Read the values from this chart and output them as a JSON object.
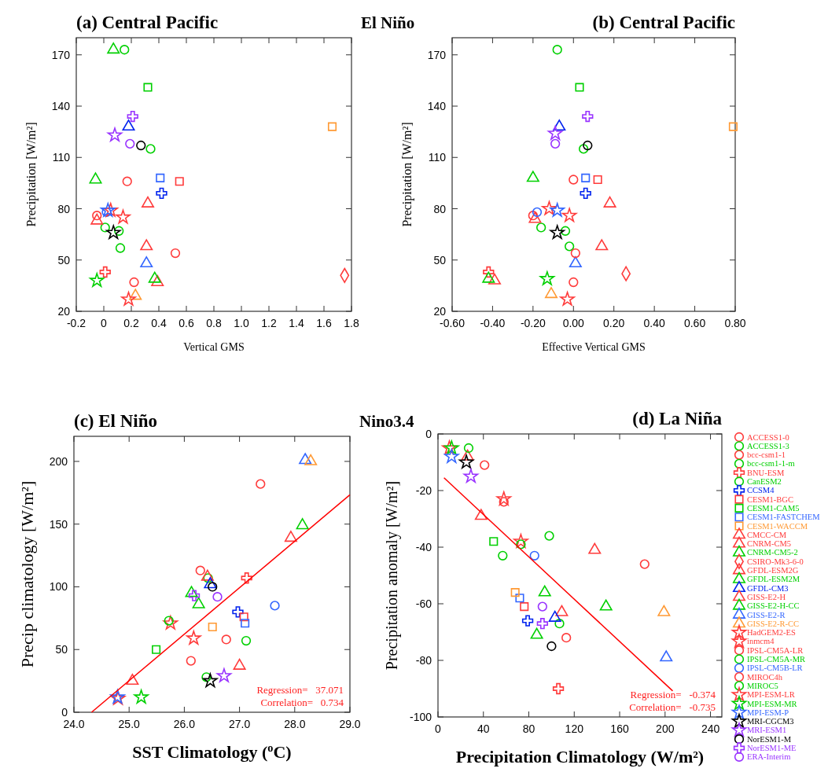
{
  "chart_data": [
    {
      "type": "scatter",
      "title": "(a) Central Pacific",
      "subtitle": "El Niño",
      "xlabel": "Vertical GMS",
      "ylabel": "Precipitation  [W/m²]",
      "xlim": [
        -0.2,
        1.8
      ],
      "ylim": [
        20,
        180
      ],
      "xticks": [
        -0.2,
        0,
        0.2,
        0.4,
        0.6,
        0.8,
        {
          "value": 1,
          "label": "1.0"
        },
        1.2,
        1.4,
        1.6,
        1.8
      ],
      "yticks": [
        20,
        50,
        80,
        110,
        140,
        170
      ],
      "series": [
        {
          "color": "#ff3b3b",
          "marker": "circle",
          "x": [
            0.17
          ],
          "values": [
            96
          ]
        },
        {
          "color": "#00d000",
          "marker": "circle",
          "x": [
            0.11
          ],
          "values": [
            67
          ]
        },
        {
          "color": "#ff3b3b",
          "marker": "circle",
          "x": [
            -0.05
          ],
          "values": [
            76
          ]
        },
        {
          "color": "#00d000",
          "marker": "circle",
          "x": [
            0.01
          ],
          "values": [
            69
          ]
        },
        {
          "color": "#ff3b3b",
          "marker": "cross",
          "x": [
            0.01
          ],
          "values": [
            43
          ]
        },
        {
          "color": "#00d000",
          "marker": "circle",
          "x": [
            0.34
          ],
          "values": [
            115
          ]
        },
        {
          "color": "#0022ee",
          "marker": "cross",
          "x": [
            0.42
          ],
          "values": [
            89
          ]
        },
        {
          "color": "#ff3b3b",
          "marker": "square",
          "x": [
            0.55
          ],
          "values": [
            96
          ]
        },
        {
          "color": "#00d000",
          "marker": "square",
          "x": [
            0.32
          ],
          "values": [
            151
          ]
        },
        {
          "color": "#3366ff",
          "marker": "square",
          "x": [
            0.41
          ],
          "values": [
            98
          ]
        },
        {
          "color": "#ff9933",
          "marker": "square",
          "x": [
            1.66
          ],
          "values": [
            128
          ]
        },
        {
          "color": "#ff3b3b",
          "marker": "triangle",
          "x": [
            0.32
          ],
          "values": [
            83
          ]
        },
        {
          "color": "#ff3b3b",
          "marker": "triangle",
          "x": [
            -0.05
          ],
          "values": [
            73
          ]
        },
        {
          "color": "#00d000",
          "marker": "triangle",
          "x": [
            -0.06
          ],
          "values": [
            97
          ]
        },
        {
          "color": "#ff3b3b",
          "marker": "diamond",
          "x": [
            1.75
          ],
          "values": [
            41
          ]
        },
        {
          "color": "#ff3b3b",
          "marker": "triangle",
          "x": [
            0.31
          ],
          "values": [
            58
          ]
        },
        {
          "color": "#00d000",
          "marker": "triangle",
          "x": [
            0.07
          ],
          "values": [
            173
          ]
        },
        {
          "color": "#0022ee",
          "marker": "triangle",
          "x": [
            0.18
          ],
          "values": [
            128
          ]
        },
        {
          "color": "#ff3b3b",
          "marker": "triangle",
          "x": [
            0.39
          ],
          "values": [
            37
          ]
        },
        {
          "color": "#00d000",
          "marker": "triangle",
          "x": [
            0.37
          ],
          "values": [
            39
          ]
        },
        {
          "color": "#3366ff",
          "marker": "triangle",
          "x": [
            0.31
          ],
          "values": [
            48
          ]
        },
        {
          "color": "#ff9933",
          "marker": "triangle",
          "x": [
            0.23
          ],
          "values": [
            29
          ]
        },
        {
          "color": "#ff3b3b",
          "marker": "star",
          "x": [
            0.14
          ],
          "values": [
            75
          ]
        },
        {
          "color": "#ff3b3b",
          "marker": "star",
          "x": [
            0.18
          ],
          "values": [
            27
          ]
        },
        {
          "color": "#ff3b3b",
          "marker": "circle",
          "x": [
            0.22
          ],
          "values": [
            37
          ]
        },
        {
          "color": "#00d000",
          "marker": "circle",
          "x": [
            0.12
          ],
          "values": [
            57
          ]
        },
        {
          "color": "#3366ff",
          "marker": "circle",
          "x": [
            0.02
          ],
          "values": [
            78
          ]
        },
        {
          "color": "#ff3b3b",
          "marker": "circle",
          "x": [
            0.52
          ],
          "values": [
            54
          ]
        },
        {
          "color": "#00d000",
          "marker": "circle",
          "x": [
            0.15
          ],
          "values": [
            173
          ]
        },
        {
          "color": "#ff3b3b",
          "marker": "star",
          "x": [
            0.05
          ],
          "values": [
            79
          ]
        },
        {
          "color": "#00d000",
          "marker": "star",
          "x": [
            -0.05
          ],
          "values": [
            38
          ]
        },
        {
          "color": "#3366ff",
          "marker": "star",
          "x": [
            0.03
          ],
          "values": [
            79
          ]
        },
        {
          "color": "#000000",
          "marker": "star",
          "x": [
            0.07
          ],
          "values": [
            66
          ]
        },
        {
          "color": "#9933ff",
          "marker": "star",
          "x": [
            0.08
          ],
          "values": [
            123
          ]
        },
        {
          "color": "#000000",
          "marker": "circle",
          "x": [
            0.27
          ],
          "values": [
            117
          ]
        },
        {
          "color": "#9933ff",
          "marker": "cross",
          "x": [
            0.21
          ],
          "values": [
            134
          ]
        },
        {
          "color": "#9933ff",
          "marker": "circle",
          "x": [
            0.19
          ],
          "values": [
            118
          ]
        }
      ]
    },
    {
      "type": "scatter",
      "title": "(b) Central Pacific",
      "xlabel": "Effective Vertical GMS",
      "ylabel": "Precipitation  [W/m²]",
      "xlim": [
        -0.6,
        0.8
      ],
      "ylim": [
        20,
        180
      ],
      "xticks": [
        {
          "value": -0.6,
          "label": "-0.60"
        },
        {
          "value": -0.4,
          "label": "-0.40"
        },
        {
          "value": -0.2,
          "label": "-0.20"
        },
        {
          "value": 0,
          "label": "0.00"
        },
        {
          "value": 0.2,
          "label": "0.20"
        },
        {
          "value": 0.4,
          "label": "0.40"
        },
        {
          "value": 0.6,
          "label": "0.60"
        },
        {
          "value": 0.8,
          "label": "0.80"
        }
      ],
      "yticks": [
        20,
        50,
        80,
        110,
        140,
        170
      ],
      "series": [
        {
          "color": "#ff3b3b",
          "marker": "circle",
          "x": [
            0.0
          ],
          "values": [
            97
          ]
        },
        {
          "color": "#00d000",
          "marker": "circle",
          "x": [
            -0.04
          ],
          "values": [
            67
          ]
        },
        {
          "color": "#ff3b3b",
          "marker": "circle",
          "x": [
            -0.2
          ],
          "values": [
            76
          ]
        },
        {
          "color": "#00d000",
          "marker": "circle",
          "x": [
            -0.16
          ],
          "values": [
            69
          ]
        },
        {
          "color": "#ff3b3b",
          "marker": "cross",
          "x": [
            -0.42
          ],
          "values": [
            43
          ]
        },
        {
          "color": "#00d000",
          "marker": "circle",
          "x": [
            0.05
          ],
          "values": [
            115
          ]
        },
        {
          "color": "#0022ee",
          "marker": "cross",
          "x": [
            0.06
          ],
          "values": [
            89
          ]
        },
        {
          "color": "#ff3b3b",
          "marker": "square",
          "x": [
            0.12
          ],
          "values": [
            97
          ]
        },
        {
          "color": "#00d000",
          "marker": "square",
          "x": [
            0.03
          ],
          "values": [
            151
          ]
        },
        {
          "color": "#3366ff",
          "marker": "square",
          "x": [
            0.06
          ],
          "values": [
            98
          ]
        },
        {
          "color": "#ff9933",
          "marker": "square",
          "x": [
            0.79
          ],
          "values": [
            128
          ]
        },
        {
          "color": "#ff3b3b",
          "marker": "triangle",
          "x": [
            0.18
          ],
          "values": [
            83
          ]
        },
        {
          "color": "#ff3b3b",
          "marker": "triangle",
          "x": [
            -0.19
          ],
          "values": [
            74
          ]
        },
        {
          "color": "#00d000",
          "marker": "triangle",
          "x": [
            -0.2
          ],
          "values": [
            98
          ]
        },
        {
          "color": "#ff3b3b",
          "marker": "diamond",
          "x": [
            0.26
          ],
          "values": [
            42
          ]
        },
        {
          "color": "#ff3b3b",
          "marker": "triangle",
          "x": [
            0.14
          ],
          "values": [
            58
          ]
        },
        {
          "color": "#00d000",
          "marker": "triangle",
          "x": [
            null
          ],
          "values": [
            null
          ]
        },
        {
          "color": "#0022ee",
          "marker": "triangle",
          "x": [
            -0.07
          ],
          "values": [
            128
          ]
        },
        {
          "color": "#ff3b3b",
          "marker": "triangle",
          "x": [
            -0.39
          ],
          "values": [
            38
          ]
        },
        {
          "color": "#00d000",
          "marker": "triangle",
          "x": [
            -0.42
          ],
          "values": [
            39
          ]
        },
        {
          "color": "#3366ff",
          "marker": "triangle",
          "x": [
            0.01
          ],
          "values": [
            48
          ]
        },
        {
          "color": "#ff9933",
          "marker": "triangle",
          "x": [
            -0.11
          ],
          "values": [
            30
          ]
        },
        {
          "color": "#ff3b3b",
          "marker": "star",
          "x": [
            -0.02
          ],
          "values": [
            76
          ]
        },
        {
          "color": "#ff3b3b",
          "marker": "star",
          "x": [
            -0.03
          ],
          "values": [
            27
          ]
        },
        {
          "color": "#ff3b3b",
          "marker": "circle",
          "x": [
            0.0
          ],
          "values": [
            37
          ]
        },
        {
          "color": "#00d000",
          "marker": "circle",
          "x": [
            -0.02
          ],
          "values": [
            58
          ]
        },
        {
          "color": "#3366ff",
          "marker": "circle",
          "x": [
            -0.18
          ],
          "values": [
            78
          ]
        },
        {
          "color": "#ff3b3b",
          "marker": "circle",
          "x": [
            0.01
          ],
          "values": [
            54
          ]
        },
        {
          "color": "#00d000",
          "marker": "circle",
          "x": [
            -0.08
          ],
          "values": [
            173
          ]
        },
        {
          "color": "#ff3b3b",
          "marker": "star",
          "x": [
            -0.12
          ],
          "values": [
            80
          ]
        },
        {
          "color": "#00d000",
          "marker": "star",
          "x": [
            -0.13
          ],
          "values": [
            39
          ]
        },
        {
          "color": "#3366ff",
          "marker": "star",
          "x": [
            -0.08
          ],
          "values": [
            79
          ]
        },
        {
          "color": "#000000",
          "marker": "star",
          "x": [
            -0.08
          ],
          "values": [
            66
          ]
        },
        {
          "color": "#9933ff",
          "marker": "star",
          "x": [
            -0.09
          ],
          "values": [
            124
          ]
        },
        {
          "color": "#000000",
          "marker": "circle",
          "x": [
            0.07
          ],
          "values": [
            117
          ]
        },
        {
          "color": "#9933ff",
          "marker": "cross",
          "x": [
            0.07
          ],
          "values": [
            134
          ]
        },
        {
          "color": "#9933ff",
          "marker": "circle",
          "x": [
            -0.09
          ],
          "values": [
            118
          ]
        }
      ]
    },
    {
      "type": "scatter",
      "title": "(c) El Niño",
      "subtitle": "Nino3.4",
      "xlabel": "SST Climatology ($^{o}$C)",
      "ylabel": "Precip climatology [W/m²]",
      "xlim": [
        24,
        29
      ],
      "ylim": [
        0,
        220
      ],
      "xticks": [
        {
          "value": 24,
          "label": "24.0"
        },
        {
          "value": 25,
          "label": "25.0"
        },
        {
          "value": 26,
          "label": "26.0"
        },
        {
          "value": 27,
          "label": "27.0"
        },
        {
          "value": 28,
          "label": "28.0"
        },
        {
          "value": 29,
          "label": "29.0"
        }
      ],
      "yticks": [
        0,
        50,
        100,
        150,
        200
      ],
      "annotations": [
        "Regression=   37.071",
        "Correlation=   0.734"
      ],
      "series": [
        {
          "color": "#ff3b3b",
          "marker": "circle",
          "x": [
            26.29
          ],
          "values": [
            113
          ]
        },
        {
          "color": "#00d000",
          "marker": "circle",
          "x": [
            null
          ],
          "values": [
            null
          ]
        },
        {
          "color": "#ff3b3b",
          "marker": "circle",
          "x": [
            26.76
          ],
          "values": [
            58
          ]
        },
        {
          "color": "#00d000",
          "marker": "circle",
          "x": [
            27.12
          ],
          "values": [
            57
          ]
        },
        {
          "color": "#ff3b3b",
          "marker": "cross",
          "x": [
            27.13
          ],
          "values": [
            107
          ]
        },
        {
          "color": "#00d000",
          "marker": "circle",
          "x": [
            26.43
          ],
          "values": [
            107
          ]
        },
        {
          "color": "#0022ee",
          "marker": "cross",
          "x": [
            26.97
          ],
          "values": [
            80
          ]
        },
        {
          "color": "#ff3b3b",
          "marker": "square",
          "x": [
            27.08
          ],
          "values": [
            76
          ]
        },
        {
          "color": "#00d000",
          "marker": "square",
          "x": [
            25.49
          ],
          "values": [
            50
          ]
        },
        {
          "color": "#3366ff",
          "marker": "square",
          "x": [
            27.1
          ],
          "values": [
            71
          ]
        },
        {
          "color": "#ff9933",
          "marker": "square",
          "x": [
            26.51
          ],
          "values": [
            68
          ]
        },
        {
          "color": "#ff3b3b",
          "marker": "triangle",
          "x": [
            27.0
          ],
          "values": [
            37
          ]
        },
        {
          "color": "#ff3b3b",
          "marker": "triangle",
          "x": [
            26.42
          ],
          "values": [
            108
          ]
        },
        {
          "color": "#00d000",
          "marker": "triangle",
          "x": [
            26.13
          ],
          "values": [
            95
          ]
        },
        {
          "color": "#ff3b3b",
          "marker": "diamond",
          "x": [
            null
          ],
          "values": [
            null
          ]
        },
        {
          "color": "#ff3b3b",
          "marker": "triangle",
          "x": [
            25.06
          ],
          "values": [
            25
          ]
        },
        {
          "color": "#00d000",
          "marker": "triangle",
          "x": [
            26.26
          ],
          "values": [
            86
          ]
        },
        {
          "color": "#0022ee",
          "marker": "triangle",
          "x": [
            26.47
          ],
          "values": [
            102
          ]
        },
        {
          "color": "#ff3b3b",
          "marker": "triangle",
          "x": [
            27.93
          ],
          "values": [
            139
          ]
        },
        {
          "color": "#00d000",
          "marker": "triangle",
          "x": [
            28.14
          ],
          "values": [
            149
          ]
        },
        {
          "color": "#3366ff",
          "marker": "triangle",
          "x": [
            28.19
          ],
          "values": [
            201
          ]
        },
        {
          "color": "#ff9933",
          "marker": "triangle",
          "x": [
            28.29
          ],
          "values": [
            200
          ]
        },
        {
          "color": "#ff3b3b",
          "marker": "star",
          "x": [
            25.75
          ],
          "values": [
            71
          ]
        },
        {
          "color": "#ff3b3b",
          "marker": "star",
          "x": [
            26.17
          ],
          "values": [
            59
          ]
        },
        {
          "color": "#ff3b3b",
          "marker": "circle",
          "x": [
            26.12
          ],
          "values": [
            41
          ]
        },
        {
          "color": "#00d000",
          "marker": "circle",
          "x": [
            26.4
          ],
          "values": [
            28
          ]
        },
        {
          "color": "#3366ff",
          "marker": "circle",
          "x": [
            27.64
          ],
          "values": [
            85
          ]
        },
        {
          "color": "#ff3b3b",
          "marker": "circle",
          "x": [
            27.38
          ],
          "values": [
            182
          ]
        },
        {
          "color": "#00d000",
          "marker": "circle",
          "x": [
            25.72
          ],
          "values": [
            73
          ]
        },
        {
          "color": "#ff3b3b",
          "marker": "star",
          "x": [
            24.8
          ],
          "values": [
            11
          ]
        },
        {
          "color": "#00d000",
          "marker": "star",
          "x": [
            25.22
          ],
          "values": [
            12
          ]
        },
        {
          "color": "#3366ff",
          "marker": "star",
          "x": [
            24.79
          ],
          "values": [
            12
          ]
        },
        {
          "color": "#000000",
          "marker": "star",
          "x": [
            26.47
          ],
          "values": [
            25
          ]
        },
        {
          "color": "#9933ff",
          "marker": "star",
          "x": [
            26.72
          ],
          "values": [
            29
          ]
        },
        {
          "color": "#000000",
          "marker": "circle",
          "x": [
            26.51
          ],
          "values": [
            100
          ]
        },
        {
          "color": "#9933ff",
          "marker": "cross",
          "x": [
            26.18
          ],
          "values": [
            93
          ]
        },
        {
          "color": "#9933ff",
          "marker": "circle",
          "x": [
            26.6
          ],
          "values": [
            92
          ]
        },
        {
          "type": "line",
          "color": "#ff0000",
          "x": [
            24.32,
            29
          ],
          "values": [
            0,
            173.4
          ]
        }
      ]
    },
    {
      "type": "scatter",
      "title": "(d) La Niña",
      "xlabel": "Precipitation Climatology (W/m²)",
      "ylabel": "Precipitation anomaly  [W/m²]",
      "xlim": [
        0,
        250
      ],
      "ylim": [
        -100,
        0
      ],
      "xticks": [
        0,
        40,
        80,
        120,
        160,
        200,
        240
      ],
      "yticks": [
        -100,
        -80,
        -60,
        -40,
        -20,
        0
      ],
      "legend": "right",
      "annotations": [
        "Regression=   -0.374",
        "Correlation=   -0.735"
      ],
      "series": [
        {
          "name": "ACCESS1-0",
          "color": "#ff3b3b",
          "marker": "circle",
          "x": [
            113
          ],
          "values": [
            -72
          ]
        },
        {
          "name": "ACCESS1-3",
          "color": "#00d000",
          "marker": "circle",
          "x": [
            98
          ],
          "values": [
            -36
          ]
        },
        {
          "name": "bcc-csm1-1",
          "color": "#ff3b3b",
          "marker": "circle",
          "x": [
            58
          ],
          "values": [
            -24
          ]
        },
        {
          "name": "bcc-csm1-1-m",
          "color": "#00d000",
          "marker": "circle",
          "x": [
            57
          ],
          "values": [
            -43
          ]
        },
        {
          "name": "BNU-ESM",
          "color": "#ff3b3b",
          "marker": "cross",
          "x": [
            106
          ],
          "values": [
            -90
          ]
        },
        {
          "name": "CanESM2",
          "color": "#00d000",
          "marker": "circle",
          "x": [
            107
          ],
          "values": [
            -67
          ]
        },
        {
          "name": "CCSM4",
          "color": "#0022ee",
          "marker": "cross",
          "x": [
            79
          ],
          "values": [
            -66
          ]
        },
        {
          "name": "CESM1-BGC",
          "color": "#ff3b3b",
          "marker": "square",
          "x": [
            76
          ],
          "values": [
            -61
          ]
        },
        {
          "name": "CESM1-CAM5",
          "color": "#00d000",
          "marker": "square",
          "x": [
            49
          ],
          "values": [
            -38
          ]
        },
        {
          "name": "CESM1-FASTCHEM",
          "color": "#3366ff",
          "marker": "square",
          "x": [
            72
          ],
          "values": [
            -58
          ]
        },
        {
          "name": "CESM1-WACCM",
          "color": "#ff9933",
          "marker": "square",
          "x": [
            68
          ],
          "values": [
            -56
          ]
        },
        {
          "name": "CMCC-CM",
          "color": "#ff3b3b",
          "marker": "triangle",
          "x": [
            38
          ],
          "values": [
            -29
          ]
        },
        {
          "name": "CNRM-CM5",
          "color": "#ff3b3b",
          "marker": "triangle",
          "x": [
            109
          ],
          "values": [
            -63
          ]
        },
        {
          "name": "CNRM-CM5-2",
          "color": "#00d000",
          "marker": "triangle",
          "x": [
            94
          ],
          "values": [
            -56
          ]
        },
        {
          "name": "CSIRO-Mk3-6-0",
          "color": "#ff3b3b",
          "marker": "diamond",
          "x": [
            null
          ],
          "values": [
            null
          ]
        },
        {
          "name": "GFDL-ESM2G",
          "color": "#ff3b3b",
          "marker": "triangle",
          "x": [
            26
          ],
          "values": [
            -8
          ]
        },
        {
          "name": "GFDL-ESM2M",
          "color": "#00d000",
          "marker": "triangle",
          "x": [
            87
          ],
          "values": [
            -71
          ]
        },
        {
          "name": "GFDL-CM3",
          "color": "#0022ee",
          "marker": "triangle",
          "x": [
            103
          ],
          "values": [
            -65
          ]
        },
        {
          "name": "GISS-E2-H",
          "color": "#ff3b3b",
          "marker": "triangle",
          "x": [
            138
          ],
          "values": [
            -41
          ]
        },
        {
          "name": "GISS-E2-H-CC",
          "color": "#00d000",
          "marker": "triangle",
          "x": [
            148
          ],
          "values": [
            -61
          ]
        },
        {
          "name": "GISS-E2-R",
          "color": "#3366ff",
          "marker": "triangle",
          "x": [
            201
          ],
          "values": [
            -79
          ]
        },
        {
          "name": "GISS-E2-R-CC",
          "color": "#ff9933",
          "marker": "triangle",
          "x": [
            199
          ],
          "values": [
            -63
          ]
        },
        {
          "name": "HadGEM2-ES",
          "color": "#ff3b3b",
          "marker": "star",
          "x": [
            73
          ],
          "values": [
            -38
          ]
        },
        {
          "name": "inmcm4",
          "color": "#ff3b3b",
          "marker": "star",
          "x": [
            58
          ],
          "values": [
            -23
          ]
        },
        {
          "name": "IPSL-CM5A-LR",
          "color": "#ff3b3b",
          "marker": "circle",
          "x": [
            41
          ],
          "values": [
            -11
          ]
        },
        {
          "name": "IPSL-CM5A-MR",
          "color": "#00d000",
          "marker": "circle",
          "x": [
            27
          ],
          "values": [
            -5
          ]
        },
        {
          "name": "IPSL-CM5B-LR",
          "color": "#3366ff",
          "marker": "circle",
          "x": [
            85
          ],
          "values": [
            -43
          ]
        },
        {
          "name": "MIROC4h",
          "color": "#ff3b3b",
          "marker": "circle",
          "x": [
            182
          ],
          "values": [
            -46
          ]
        },
        {
          "name": "MIROC5",
          "color": "#00d000",
          "marker": "circle",
          "x": [
            73
          ],
          "values": [
            -39
          ]
        },
        {
          "name": "MPI-ESM-LR",
          "color": "#ff3b3b",
          "marker": "star",
          "x": [
            10
          ],
          "values": [
            -5
          ]
        },
        {
          "name": "MPI-ESM-MR",
          "color": "#00d000",
          "marker": "star",
          "x": [
            12
          ],
          "values": [
            -5
          ]
        },
        {
          "name": "MPI-ESM-P",
          "color": "#3366ff",
          "marker": "star",
          "x": [
            12
          ],
          "values": [
            -8
          ]
        },
        {
          "name": "MRI-CGCM3",
          "color": "#000000",
          "marker": "star",
          "x": [
            25
          ],
          "values": [
            -10
          ]
        },
        {
          "name": "MRI-ESM1",
          "color": "#9933ff",
          "marker": "star",
          "x": [
            29
          ],
          "values": [
            -15
          ]
        },
        {
          "name": "NorESM1-M",
          "color": "#000000",
          "marker": "circle",
          "x": [
            100
          ],
          "values": [
            -75
          ]
        },
        {
          "name": "NorESM1-ME",
          "color": "#9933ff",
          "marker": "cross",
          "x": [
            92
          ],
          "values": [
            -67
          ]
        },
        {
          "name": "ERA-Interim",
          "color": "#9933ff",
          "marker": "circle",
          "x": [
            92
          ],
          "values": [
            -61
          ]
        },
        {
          "type": "line",
          "color": "#ff0000",
          "x": [
            5.3,
            206.7
          ],
          "values": [
            -15.5,
            -90.8
          ]
        }
      ]
    }
  ]
}
